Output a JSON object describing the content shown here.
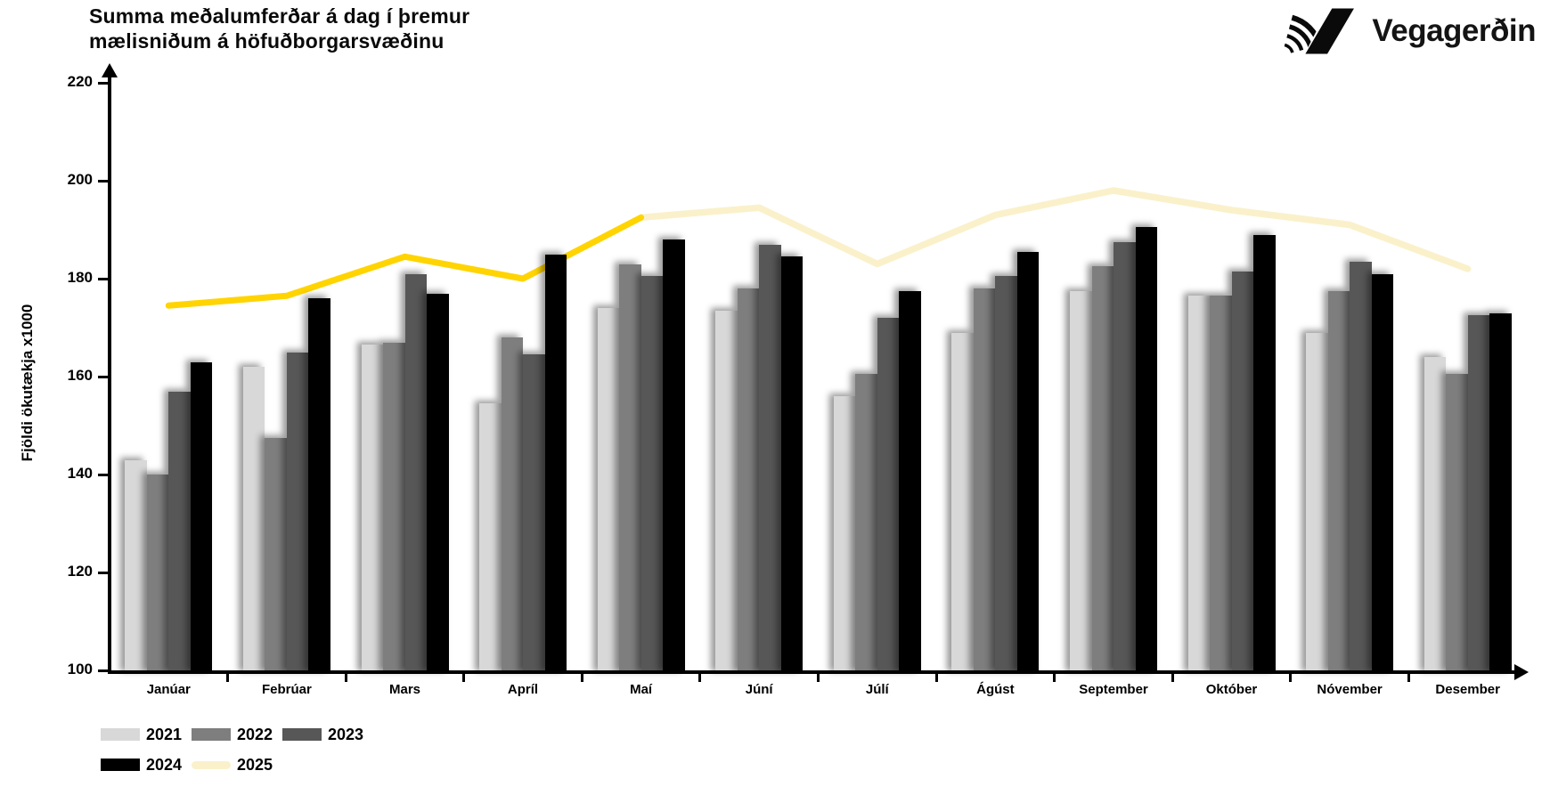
{
  "title": "Summa meðalumferðar á dag í þremur mælisniðum á höfuðborgarsvæðinu",
  "logo": {
    "text": "Vegagerðin",
    "icon": "vegagerdin-v-stripes-mark"
  },
  "chart_data": {
    "type": "bar",
    "title": "Summa meðalumferðar á dag í þremur mælisniðum á höfuðborgarsvæðinu",
    "ylabel": "Fjöldi ökutækja x1000",
    "xlabel": "",
    "ylim": [
      100,
      220
    ],
    "yticks": [
      100,
      120,
      140,
      160,
      180,
      200,
      220
    ],
    "grid": false,
    "legend_position": "bottom-left",
    "legend_rows": [
      [
        "2021",
        "2022",
        "2023"
      ],
      [
        "2024",
        "2025"
      ]
    ],
    "categories": [
      "Janúar",
      "Febrúar",
      "Mars",
      "Apríl",
      "Maí",
      "Júní",
      "Júlí",
      "Ágúst",
      "September",
      "Október",
      "Nóvember",
      "Desember"
    ],
    "series": [
      {
        "name": "2021",
        "type": "bar",
        "color": "#d8d8d8",
        "values": [
          143,
          162,
          166.5,
          154.5,
          174,
          173.5,
          156,
          169,
          177.5,
          176.5,
          169,
          164
        ]
      },
      {
        "name": "2022",
        "type": "bar",
        "color": "#7e7e7e",
        "values": [
          140,
          147.5,
          167,
          168,
          183,
          178,
          160.5,
          178,
          182.5,
          176.5,
          177.5,
          160.5
        ]
      },
      {
        "name": "2023",
        "type": "bar",
        "color": "#575757",
        "values": [
          157,
          165,
          181,
          164.5,
          180.5,
          187,
          172,
          180.5,
          187.5,
          181.5,
          183.5,
          172.5
        ]
      },
      {
        "name": "2024",
        "type": "bar",
        "color": "#000000",
        "values": [
          163,
          176,
          177,
          185,
          188,
          184.5,
          177.5,
          185.5,
          190.5,
          189,
          181,
          173
        ]
      },
      {
        "name": "2025",
        "type": "line",
        "color": "#ffd400",
        "color_after_split": "#faf1cb",
        "split_at": "Maí",
        "values": [
          174.5,
          176.5,
          184.5,
          180,
          192.5,
          194.5,
          183,
          193,
          198,
          194,
          191,
          182
        ]
      }
    ]
  }
}
